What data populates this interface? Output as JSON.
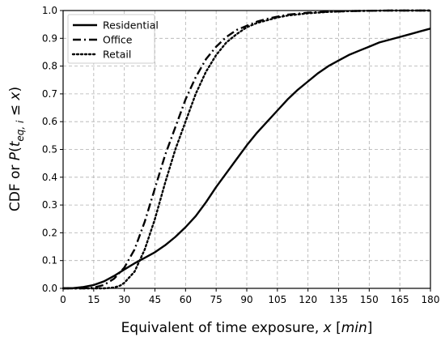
{
  "chart_data": {
    "type": "line",
    "xlabel": "Equivalent of time exposure, x [min]",
    "ylabel": "CDF or P(t_{eq, i} ≤ x)",
    "xlim": [
      0,
      180
    ],
    "ylim": [
      0,
      1.0
    ],
    "xticks": [
      0,
      15,
      30,
      45,
      60,
      75,
      90,
      105,
      120,
      135,
      150,
      165,
      180
    ],
    "yticks": [
      0.0,
      0.1,
      0.2,
      0.3,
      0.4,
      0.5,
      0.6,
      0.7,
      0.8,
      0.9,
      1.0
    ],
    "grid": true,
    "legend_position": "top-left",
    "series": [
      {
        "name": "Residential",
        "style": "solid",
        "x": [
          0,
          5,
          10,
          15,
          20,
          25,
          30,
          35,
          40,
          45,
          50,
          55,
          60,
          65,
          70,
          75,
          80,
          85,
          90,
          95,
          100,
          105,
          110,
          115,
          120,
          125,
          130,
          135,
          140,
          145,
          150,
          155,
          160,
          165,
          170,
          175,
          180
        ],
        "values": [
          0,
          0.001,
          0.005,
          0.012,
          0.025,
          0.045,
          0.068,
          0.09,
          0.11,
          0.13,
          0.155,
          0.185,
          0.22,
          0.26,
          0.31,
          0.365,
          0.415,
          0.465,
          0.515,
          0.56,
          0.6,
          0.64,
          0.68,
          0.715,
          0.745,
          0.775,
          0.8,
          0.82,
          0.84,
          0.855,
          0.87,
          0.885,
          0.895,
          0.905,
          0.915,
          0.925,
          0.935
        ]
      },
      {
        "name": "Office",
        "style": "dashdot",
        "x": [
          0,
          10,
          15,
          20,
          25,
          30,
          35,
          40,
          45,
          50,
          55,
          60,
          65,
          70,
          75,
          80,
          85,
          90,
          95,
          100,
          105,
          110,
          120,
          130,
          140,
          150,
          160,
          180
        ],
        "values": [
          0,
          0,
          0.003,
          0.012,
          0.035,
          0.075,
          0.14,
          0.24,
          0.36,
          0.48,
          0.58,
          0.68,
          0.76,
          0.825,
          0.87,
          0.905,
          0.93,
          0.945,
          0.96,
          0.97,
          0.978,
          0.985,
          0.992,
          0.996,
          0.998,
          0.999,
          1.0,
          1.0
        ]
      },
      {
        "name": "Retail",
        "style": "dotted",
        "x": [
          0,
          20,
          25,
          28,
          30,
          35,
          40,
          45,
          50,
          55,
          60,
          65,
          70,
          75,
          80,
          85,
          90,
          95,
          100,
          105,
          110,
          120,
          130,
          140,
          150,
          160,
          180
        ],
        "values": [
          0,
          0,
          0.003,
          0.01,
          0.02,
          0.06,
          0.14,
          0.25,
          0.38,
          0.5,
          0.6,
          0.7,
          0.78,
          0.84,
          0.885,
          0.915,
          0.94,
          0.955,
          0.965,
          0.975,
          0.982,
          0.99,
          0.995,
          0.998,
          0.999,
          1.0,
          1.0
        ]
      }
    ]
  }
}
